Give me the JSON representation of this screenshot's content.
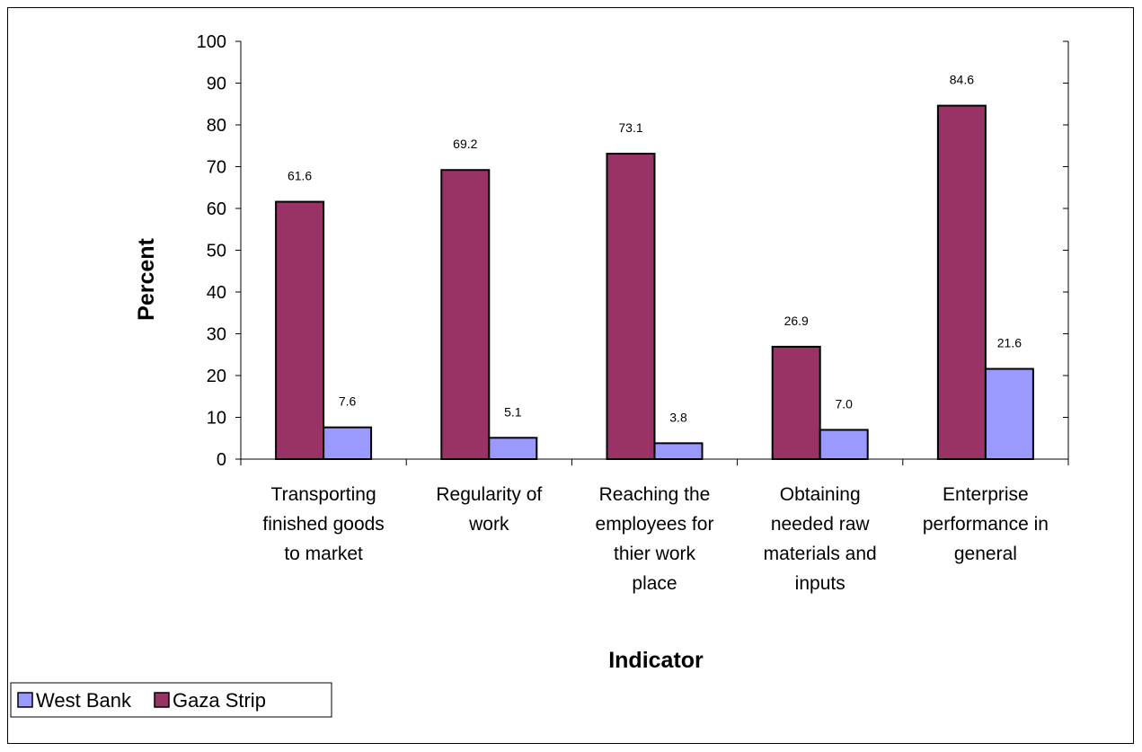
{
  "chart_data": {
    "type": "bar",
    "title": "",
    "xlabel": "Indicator",
    "ylabel": "Percent",
    "ylim": [
      0,
      100
    ],
    "yticks": [
      0,
      10,
      20,
      30,
      40,
      50,
      60,
      70,
      80,
      90,
      100
    ],
    "categories": [
      [
        "Transporting",
        "finished goods",
        "to market"
      ],
      [
        "Regularity of",
        "work"
      ],
      [
        "Reaching the",
        "employees for",
        "thier  work",
        "place"
      ],
      [
        "Obtaining",
        "needed raw",
        "materials and",
        "inputs"
      ],
      [
        "Enterprise",
        "performance in",
        "general"
      ]
    ],
    "series": [
      {
        "name": "Gaza Strip",
        "color": "#993366",
        "values": [
          61.6,
          69.2,
          73.1,
          26.9,
          84.6
        ],
        "labels": [
          "61.6",
          "69.2",
          "73.1",
          "26.9",
          "84.6"
        ]
      },
      {
        "name": "West Bank",
        "color": "#9999FF",
        "values": [
          7.6,
          5.1,
          3.8,
          7.0,
          21.6
        ],
        "labels": [
          "7.6",
          "5.1",
          "3.8",
          "7.0",
          "21.6"
        ]
      }
    ],
    "legend": {
      "position": "bottom-left",
      "order": [
        "West Bank",
        "Gaza Strip"
      ]
    },
    "grid": false
  }
}
